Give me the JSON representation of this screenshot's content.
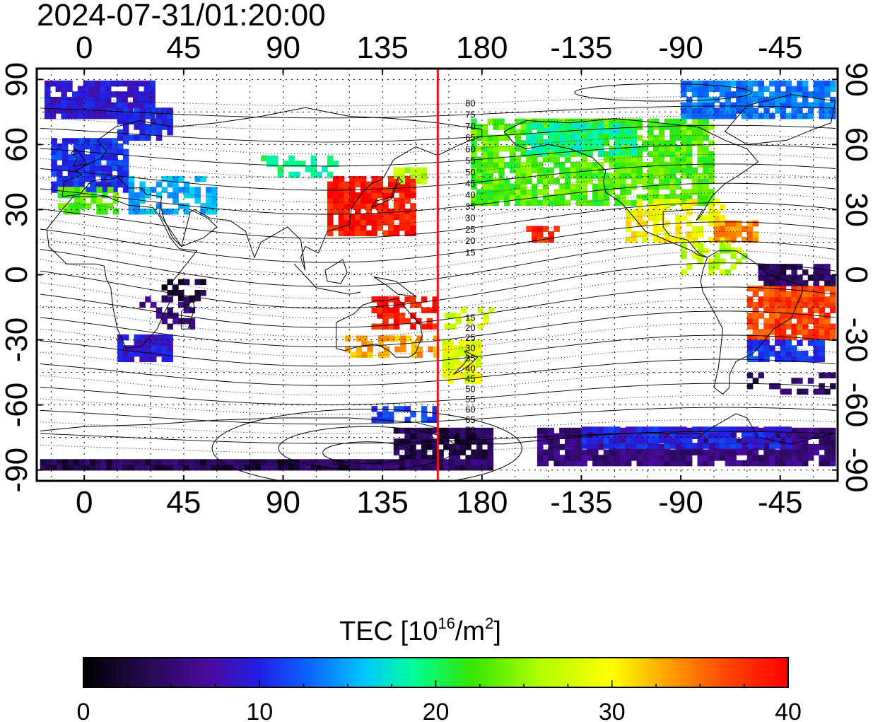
{
  "timestamp": "2024-07-31/01:20:00",
  "top_lon_labels": [
    "0",
    "45",
    "90",
    "135",
    "180",
    "-135",
    "-90",
    "-45"
  ],
  "bottom_lon_labels": [
    "0",
    "45",
    "90",
    "135",
    "180",
    "-135",
    "-90",
    "-45"
  ],
  "left_lat_labels": [
    "90",
    "60",
    "30",
    "0",
    "-30",
    "-60",
    "-90"
  ],
  "right_lat_labels": [
    "90",
    "60",
    "30",
    "0",
    "-30",
    "-60",
    "-90"
  ],
  "contour_labels_north": [
    "80",
    "75",
    "70",
    "65",
    "60",
    "55",
    "50",
    "45",
    "40",
    "35",
    "30",
    "25",
    "20",
    "15"
  ],
  "contour_labels_south": [
    "15",
    "20",
    "25",
    "30",
    "35",
    "40",
    "45",
    "50",
    "55",
    "60",
    "65",
    "70",
    "75"
  ],
  "colorbar": {
    "title_prefix": "TEC  [10",
    "title_exp1": "16",
    "title_mid": "/m",
    "title_exp2": "2",
    "title_suffix": "]",
    "tick_labels": [
      "0",
      "10",
      "20",
      "30",
      "40"
    ],
    "min": 0,
    "max": 40
  },
  "terminator_longitude": 160,
  "colors": {
    "terminator": "#ee1111",
    "scale": [
      "#000000",
      "#2a0a5a",
      "#4b0aa0",
      "#2020e6",
      "#0a64ff",
      "#00c8ff",
      "#00ff96",
      "#32e600",
      "#b4ff00",
      "#ffff00",
      "#ffa000",
      "#ff4800",
      "#ff0000"
    ]
  }
}
